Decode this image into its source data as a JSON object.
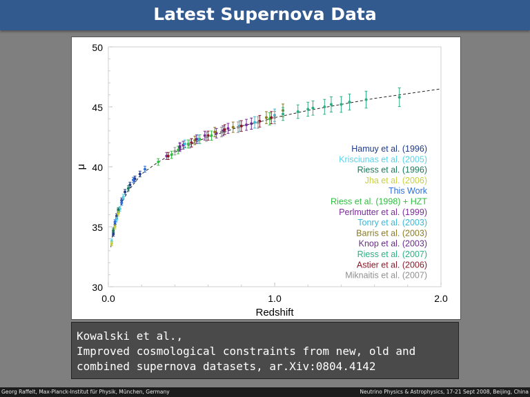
{
  "slide": {
    "title": "Latest Supernova Data"
  },
  "citation": {
    "line1": "Kowalski et al.,",
    "line2": "Improved cosmological constraints from new, old and",
    "line3": "combined supernova datasets, ar.Xiv:0804.4142"
  },
  "footer": {
    "left": "Georg Raffelt, Max-Planck-Institut für Physik, München, Germany",
    "right": "Neutrino Physics & Astrophysics, 17-21 Sept 2008, Beijing, China"
  },
  "chart_data": {
    "type": "scatter",
    "xlabel": "Redshift",
    "ylabel": "μ",
    "xlim": [
      0.0,
      2.0
    ],
    "ylim": [
      30,
      50
    ],
    "xticks": [
      "0.0",
      "1.0",
      "2.0"
    ],
    "yticks": [
      "30",
      "35",
      "40",
      "45",
      "50"
    ],
    "legend_position": "bottom-right",
    "legend": [
      {
        "name": "Hamuy et al. (1996)",
        "color": "#1f3a8a"
      },
      {
        "name": "Krisciunas et al. (2005)",
        "color": "#58d3e8"
      },
      {
        "name": "Riess et al. (1996)",
        "color": "#1a7a5a"
      },
      {
        "name": "Jha et al. (2006)",
        "color": "#c8d040"
      },
      {
        "name": "This Work",
        "color": "#2a6ee0"
      },
      {
        "name": "Riess et al. (1998) + HZT",
        "color": "#30c040"
      },
      {
        "name": "Perlmutter et al. (1999)",
        "color": "#7a2a9a"
      },
      {
        "name": "Tonry et al. (2003)",
        "color": "#3ab8d8"
      },
      {
        "name": "Barris et al. (2003)",
        "color": "#8a7a20"
      },
      {
        "name": "Knop et al. (2003)",
        "color": "#6a2a8a"
      },
      {
        "name": "Riess et al. (2007)",
        "color": "#2ab080"
      },
      {
        "name": "Astier et al. (2006)",
        "color": "#8a1a2a"
      },
      {
        "name": "Miknaitis et al. (2007)",
        "color": "#909090"
      }
    ],
    "series": [
      {
        "name": "Hamuy et al. (1996)",
        "points": [
          [
            0.03,
            34.4
          ],
          [
            0.04,
            35.2
          ],
          [
            0.05,
            35.9
          ],
          [
            0.06,
            36.3
          ],
          [
            0.08,
            37.2
          ],
          [
            0.1,
            37.9
          ],
          [
            0.13,
            38.5
          ],
          [
            0.16,
            39.0
          ],
          [
            0.19,
            39.4
          ]
        ]
      },
      {
        "name": "Krisciunas et al. (2005)",
        "points": [
          [
            0.02,
            33.8
          ],
          [
            0.05,
            35.6
          ],
          [
            0.07,
            36.5
          ],
          [
            0.09,
            37.5
          ]
        ]
      },
      {
        "name": "Riess et al. (1996)",
        "points": [
          [
            0.03,
            34.7
          ],
          [
            0.06,
            36.4
          ],
          [
            0.12,
            38.2
          ]
        ]
      },
      {
        "name": "Jha et al. (2006)",
        "points": [
          [
            0.02,
            33.6
          ],
          [
            0.04,
            35.0
          ],
          [
            0.06,
            36.1
          ]
        ]
      },
      {
        "name": "This Work",
        "points": [
          [
            0.04,
            35.4
          ],
          [
            0.08,
            37.0
          ],
          [
            0.15,
            38.9
          ],
          [
            0.22,
            39.8
          ]
        ]
      },
      {
        "name": "Riess et al. (1998) + HZT",
        "points": [
          [
            0.3,
            40.4
          ],
          [
            0.38,
            41.0
          ],
          [
            0.42,
            41.4
          ],
          [
            0.48,
            41.9
          ],
          [
            0.55,
            42.3
          ],
          [
            0.62,
            42.6
          ],
          [
            0.97,
            44.0
          ]
        ]
      },
      {
        "name": "Perlmutter et al. (1999)",
        "points": [
          [
            0.35,
            40.9
          ],
          [
            0.43,
            41.6
          ],
          [
            0.45,
            41.8
          ],
          [
            0.5,
            42.0
          ],
          [
            0.58,
            42.6
          ],
          [
            0.65,
            42.8
          ],
          [
            0.72,
            43.2
          ],
          [
            0.83,
            43.5
          ]
        ]
      },
      {
        "name": "Tonry et al. (2003)",
        "points": [
          [
            0.46,
            41.9
          ],
          [
            0.54,
            42.3
          ],
          [
            0.79,
            43.4
          ],
          [
            0.88,
            43.7
          ],
          [
            1.0,
            44.3
          ]
        ]
      },
      {
        "name": "Barris et al. (2003)",
        "points": [
          [
            0.52,
            42.2
          ],
          [
            0.64,
            42.9
          ],
          [
            0.75,
            43.3
          ],
          [
            0.95,
            44.1
          ],
          [
            1.05,
            44.7
          ]
        ]
      },
      {
        "name": "Knop et al. (2003)",
        "points": [
          [
            0.43,
            41.7
          ],
          [
            0.53,
            42.3
          ],
          [
            0.69,
            43.0
          ],
          [
            0.86,
            43.6
          ]
        ]
      },
      {
        "name": "Riess et al. (2007)",
        "points": [
          [
            1.05,
            44.4
          ],
          [
            1.14,
            44.6
          ],
          [
            1.2,
            44.8
          ],
          [
            1.23,
            44.9
          ],
          [
            1.3,
            45.0
          ],
          [
            1.34,
            45.2
          ],
          [
            1.4,
            45.2
          ],
          [
            1.45,
            45.4
          ],
          [
            1.55,
            45.6
          ],
          [
            1.75,
            45.8
          ]
        ]
      },
      {
        "name": "Astier et al. (2006)",
        "points": [
          [
            0.36,
            40.9
          ],
          [
            0.5,
            42.0
          ],
          [
            0.6,
            42.6
          ],
          [
            0.7,
            43.1
          ],
          [
            0.8,
            43.4
          ],
          [
            0.91,
            43.8
          ],
          [
            0.98,
            44.1
          ]
        ]
      },
      {
        "name": "Miknaitis et al. (2007)",
        "points": [
          [
            0.4,
            41.3
          ],
          [
            0.49,
            41.9
          ],
          [
            0.59,
            42.5
          ],
          [
            0.68,
            42.9
          ],
          [
            0.78,
            43.3
          ],
          [
            0.9,
            43.7
          ],
          [
            1.0,
            44.1
          ]
        ]
      }
    ],
    "curve": [
      [
        0.015,
        33.3
      ],
      [
        0.03,
        34.8
      ],
      [
        0.05,
        35.9
      ],
      [
        0.08,
        37.0
      ],
      [
        0.12,
        38.0
      ],
      [
        0.2,
        39.4
      ],
      [
        0.3,
        40.4
      ],
      [
        0.4,
        41.2
      ],
      [
        0.5,
        41.9
      ],
      [
        0.6,
        42.5
      ],
      [
        0.7,
        42.9
      ],
      [
        0.8,
        43.4
      ],
      [
        0.9,
        43.7
      ],
      [
        1.0,
        44.1
      ],
      [
        1.2,
        44.7
      ],
      [
        1.4,
        45.2
      ],
      [
        1.6,
        45.7
      ],
      [
        1.8,
        46.1
      ],
      [
        2.0,
        46.5
      ]
    ]
  }
}
